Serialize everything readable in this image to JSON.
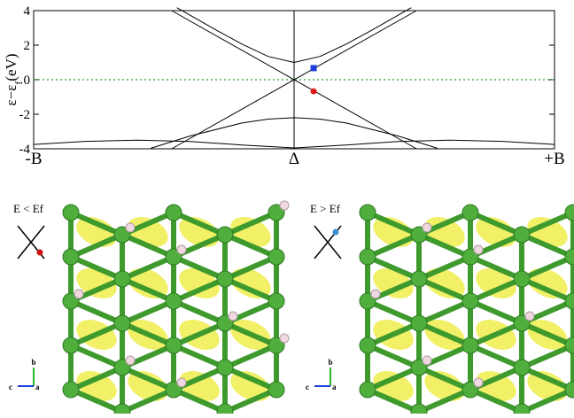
{
  "chart_data": {
    "type": "line",
    "ylabel": {
      "main": "ε−ε",
      "sub": "f",
      "unit": "(eV)"
    },
    "xlim": [
      -1,
      1
    ],
    "ylim": [
      -4,
      4
    ],
    "xticks": [
      {
        "value": -1,
        "label": "-B"
      },
      {
        "value": 0,
        "label": "Δ"
      },
      {
        "value": 1,
        "label": "+B"
      }
    ],
    "yticks": [
      -4,
      -2,
      0,
      2,
      4
    ],
    "x_grid": true,
    "fermi_level": 0,
    "fermi_color": "#2a9d2a",
    "series": [
      {
        "color": "#000000",
        "x": [
          -0.47,
          0.47
        ],
        "values": [
          4,
          -4
        ]
      },
      {
        "color": "#000000",
        "x": [
          -0.47,
          0.47
        ],
        "values": [
          -4,
          4
        ]
      },
      {
        "color": "#000000",
        "x": [
          -0.45,
          -0.3,
          -0.2,
          -0.1,
          0,
          0.1,
          0.2,
          0.3,
          0.45
        ],
        "values": [
          4.17,
          2.88,
          2.06,
          1.35,
          1,
          1.35,
          2.06,
          2.88,
          4.17
        ]
      },
      {
        "color": "#000000",
        "x": [
          -0.55,
          -0.4,
          -0.2,
          -0.1,
          0,
          0.1,
          0.2,
          0.4,
          0.55
        ],
        "values": [
          -3.97,
          -3.26,
          -2.51,
          -2.28,
          -2.2,
          -2.28,
          -2.51,
          -3.26,
          -3.97
        ]
      },
      {
        "color": "#000000",
        "x": [
          -1,
          -0.8,
          -0.6,
          -0.4,
          -0.2,
          0,
          0.2,
          0.4,
          0.6,
          0.8,
          1
        ],
        "values": [
          -3.75,
          -3.57,
          -3.5,
          -3.58,
          -3.78,
          -3.95,
          -3.78,
          -3.58,
          -3.5,
          -3.57,
          -3.75
        ]
      }
    ],
    "markers": [
      {
        "x": 0.075,
        "y": 0.67,
        "color": "#1f3fdd",
        "shape": "square"
      },
      {
        "x": 0.075,
        "y": -0.67,
        "color": "#e01818",
        "shape": "circle"
      }
    ]
  },
  "panels": [
    {
      "label": "E < Ef",
      "dot_color": "#d01010",
      "axes": [
        "b",
        "c",
        "a"
      ]
    },
    {
      "label": "E > Ef",
      "dot_color": "#3a8fd0",
      "axes": [
        "b",
        "c",
        "a"
      ]
    }
  ]
}
